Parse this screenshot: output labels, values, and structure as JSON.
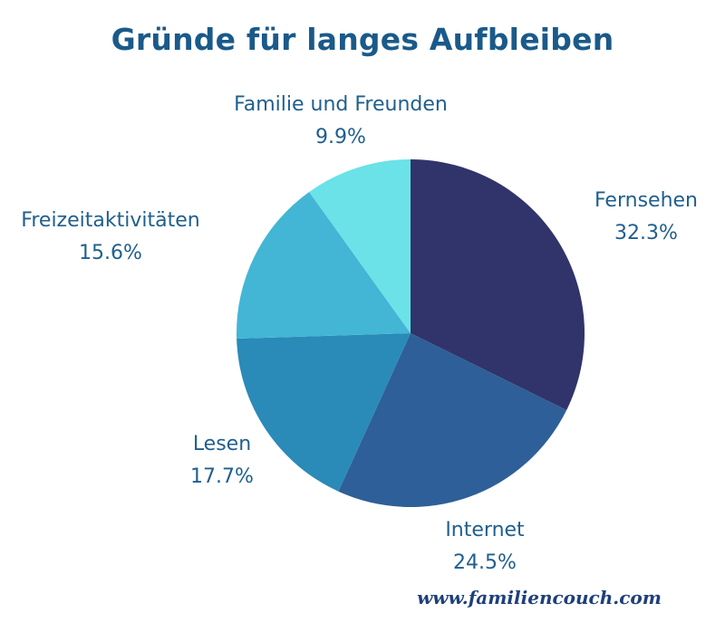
{
  "chart_data": {
    "type": "pie",
    "title": "Gründe für langes Aufbleiben",
    "slices": [
      {
        "label": "Fernsehen",
        "value": 32.3,
        "value_label": "32.3%",
        "color": "#30346a"
      },
      {
        "label": "Internet",
        "value": 24.5,
        "value_label": "24.5%",
        "color": "#2e5f98"
      },
      {
        "label": "Lesen",
        "value": 17.7,
        "value_label": "17.7%",
        "color": "#2a8ab8"
      },
      {
        "label": "Freizeitaktivitäten",
        "value": 15.6,
        "value_label": "15.6%",
        "color": "#42b6d4"
      },
      {
        "label": "Familie und Freunden",
        "value": 9.9,
        "value_label": "9.9%",
        "color": "#6ae2e8"
      }
    ],
    "start_angle": "12 o'clock",
    "direction": "clockwise",
    "legend": "none"
  },
  "watermark": "www.familiencouch.com",
  "colors": {
    "title": "#1a5a8a",
    "labels": "#1f5f8e",
    "watermark": "#1f3f7a"
  }
}
